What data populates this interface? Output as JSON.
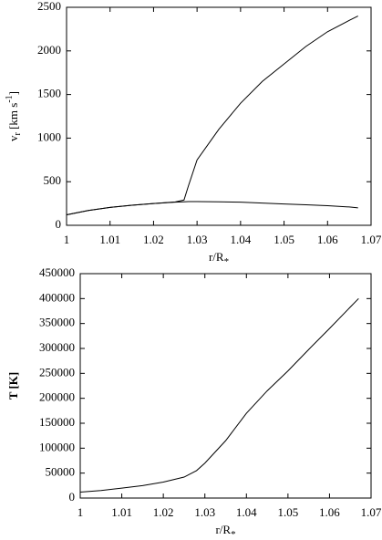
{
  "chart_data": [
    {
      "type": "line",
      "xlabel": [
        "r/R",
        "*"
      ],
      "ylabel": [
        "v",
        "r",
        " [km s",
        "-1",
        "]"
      ],
      "x": [
        1,
        1.005,
        1.01,
        1.015,
        1.02,
        1.025,
        1.027,
        1.028,
        1.03,
        1.035,
        1.04,
        1.045,
        1.05,
        1.055,
        1.06,
        1.065,
        1.067
      ],
      "series": [
        {
          "color": "#000000",
          "values": [
            120,
            170,
            205,
            230,
            250,
            265,
            270,
            272,
            272,
            270,
            265,
            255,
            245,
            235,
            225,
            210,
            200
          ]
        },
        {
          "color": "#000000",
          "values": [
            120,
            170,
            205,
            230,
            250,
            268,
            290,
            450,
            750,
            1100,
            1400,
            1650,
            1850,
            2050,
            2220,
            2350,
            2400
          ]
        }
      ],
      "xlim": [
        1,
        1.07
      ],
      "xticks": [
        1,
        1.01,
        1.02,
        1.03,
        1.04,
        1.05,
        1.06,
        1.07
      ],
      "ylim": [
        0,
        2500
      ],
      "yticks": [
        0,
        500,
        1000,
        1500,
        2000,
        2500
      ]
    },
    {
      "type": "line",
      "xlabel": [
        "r/R",
        "*"
      ],
      "ylabel": [
        "T [K]"
      ],
      "x": [
        1,
        1.005,
        1.01,
        1.015,
        1.02,
        1.025,
        1.028,
        1.03,
        1.035,
        1.04,
        1.045,
        1.05,
        1.055,
        1.06,
        1.065,
        1.067
      ],
      "series": [
        {
          "color": "#000000",
          "values": [
            12000,
            15000,
            20000,
            25000,
            32000,
            42000,
            55000,
            70000,
            115000,
            170000,
            215000,
            255000,
            298000,
            340000,
            383000,
            400000
          ]
        }
      ],
      "xlim": [
        1,
        1.07
      ],
      "xticks": [
        1,
        1.01,
        1.02,
        1.03,
        1.04,
        1.05,
        1.06,
        1.07
      ],
      "ylim": [
        0,
        450000
      ],
      "yticks": [
        0,
        50000,
        100000,
        150000,
        200000,
        250000,
        300000,
        350000,
        400000,
        450000
      ]
    }
  ]
}
